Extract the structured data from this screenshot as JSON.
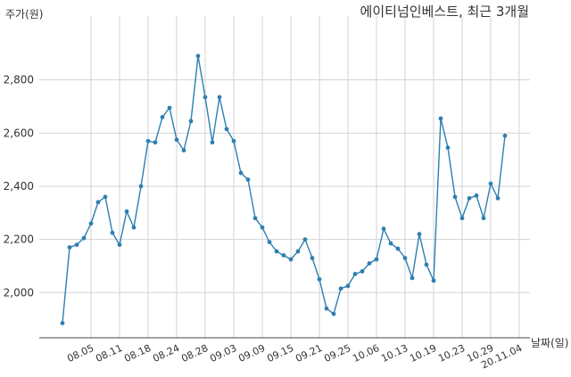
{
  "chart_data": {
    "type": "line",
    "title": "에이티넘인베스트, 최근 3개월",
    "ylabel": "주가(원)",
    "xlabel": "날짜(일)",
    "ylim": [
      1830,
      3000
    ],
    "yticks": [
      2000,
      2200,
      2400,
      2600,
      2800
    ],
    "ytick_labels": [
      "2,000",
      "2,200",
      "2,400",
      "2,600",
      "2,800"
    ],
    "xtick_labels": [
      "08.05",
      "08.11",
      "08.18",
      "08.24",
      "08.28",
      "09.03",
      "09.09",
      "09.15",
      "09.21",
      "09.25",
      "10.06",
      "10.13",
      "10.19",
      "10.23",
      "10.29",
      "20.11.04"
    ],
    "xtick_index": [
      4,
      8,
      12,
      16,
      20,
      24,
      28,
      32,
      36,
      40,
      44,
      48,
      52,
      56,
      60,
      64
    ],
    "grid": true,
    "line_color": "#2e7fb0",
    "series": [
      {
        "values": [
          1885,
          2170,
          2180,
          2205,
          2260,
          2340,
          2360,
          2225,
          2180,
          2305,
          2245,
          2400,
          2570,
          2565,
          2660,
          2695,
          2575,
          2535,
          2645,
          2890,
          2735,
          2565,
          2735,
          2615,
          2570,
          2450,
          2425,
          2280,
          2245,
          2190,
          2155,
          2140,
          2125,
          2155,
          2200,
          2130,
          2050,
          1940,
          1920,
          2015,
          2025,
          2070,
          2080,
          2110,
          2125,
          2240,
          2185,
          2165,
          2130,
          2055,
          2220,
          2105,
          2045,
          2655,
          2545,
          2360,
          2280,
          2355,
          2365,
          2280,
          2410,
          2355,
          2590
        ]
      }
    ]
  }
}
